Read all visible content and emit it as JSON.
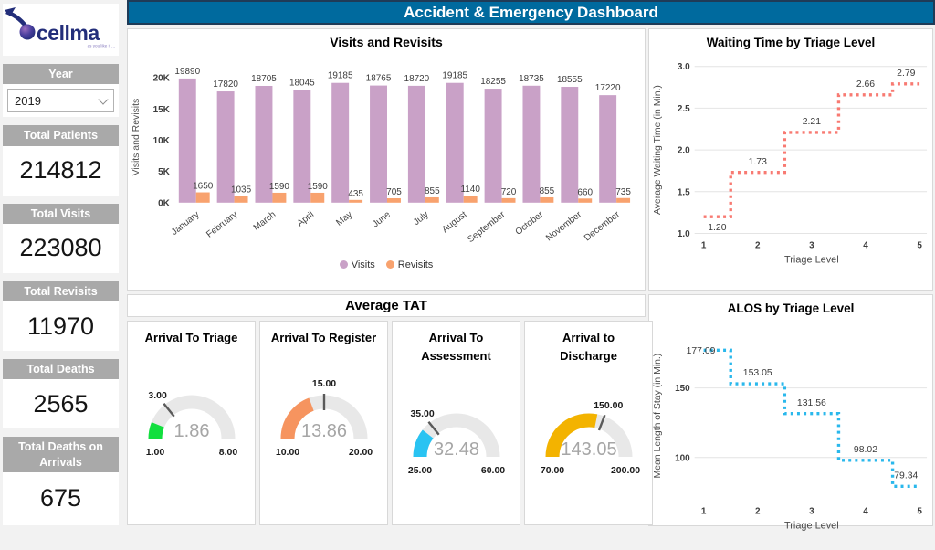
{
  "app": {
    "title": "Accident & Emergency Dashboard"
  },
  "logo": {
    "brand": "cellma",
    "tagline": "as you like it ..."
  },
  "sidebar": {
    "year_label": "Year",
    "year_value": "2019",
    "stats": [
      {
        "label": "Total Patients",
        "value": "214812"
      },
      {
        "label": "Total Visits",
        "value": "223080"
      },
      {
        "label": "Total Revisits",
        "value": "11970"
      },
      {
        "label": "Total Deaths",
        "value": "2565"
      },
      {
        "label": "Total Deaths on Arrivals",
        "value": "675"
      }
    ]
  },
  "theme": {
    "titlebar_bg": "#006a9e",
    "titlebar_border": "#1f3b57",
    "sidebar_header_gray": "#a9a9a9",
    "background": "#f2f2f2",
    "brand_navy": "#232e7a",
    "visits_color": "#c9a1c7",
    "revisits_color": "#f8a26e",
    "waiting_line_color": "#f87a72",
    "alos_line_color": "#2ab8ec"
  },
  "chart_data": [
    {
      "id": "visits_revisits",
      "type": "bar",
      "title": "Visits and Revisits",
      "categories": [
        "January",
        "February",
        "March",
        "April",
        "May",
        "June",
        "July",
        "August",
        "September",
        "October",
        "November",
        "December"
      ],
      "series": [
        {
          "name": "Visits",
          "color": "#c9a1c7",
          "values": [
            19890,
            17820,
            18705,
            18045,
            19185,
            18765,
            18720,
            19185,
            18255,
            18735,
            18555,
            17220
          ]
        },
        {
          "name": "Revisits",
          "color": "#f8a26e",
          "values": [
            1650,
            1035,
            1590,
            1590,
            435,
            705,
            855,
            1140,
            720,
            855,
            660,
            735
          ]
        }
      ],
      "xlabel": "",
      "ylabel": "Visits and Revisits",
      "yticks": [
        0,
        5000,
        10000,
        15000,
        20000
      ],
      "ytick_labels": [
        "0K",
        "5K",
        "10K",
        "15K",
        "20K"
      ],
      "ylim": [
        0,
        21000
      ],
      "grid": false,
      "legend_position": "bottom"
    },
    {
      "id": "waiting_time",
      "type": "line",
      "subtype": "step-dotted",
      "title": "Waiting Time by Triage Level",
      "x": [
        1,
        2,
        3,
        4,
        5
      ],
      "values": [
        1.2,
        1.73,
        2.21,
        2.66,
        2.79
      ],
      "labels": [
        "1.20",
        "1.73",
        "2.21",
        "2.66",
        "2.79"
      ],
      "color": "#f87a72",
      "xlabel": "Triage Level",
      "ylabel": "Average Waiting Time (in Min.)",
      "yticks": [
        1.0,
        1.5,
        2.0,
        2.5,
        3.0
      ],
      "ytick_labels": [
        "1.0",
        "1.5",
        "2.0",
        "2.5",
        "3.0"
      ],
      "ylim": [
        1.0,
        3.0
      ],
      "grid": true,
      "legend_position": "none"
    },
    {
      "id": "alos",
      "type": "line",
      "subtype": "step-dotted",
      "title": "ALOS by Triage Level",
      "x": [
        1,
        2,
        3,
        4,
        5
      ],
      "values": [
        177.09,
        153.05,
        131.56,
        98.02,
        79.34
      ],
      "labels": [
        "177.09",
        "153.05",
        "131.56",
        "98.02",
        "79.34"
      ],
      "color": "#2ab8ec",
      "xlabel": "Triage Level",
      "ylabel": "Mean Length of Stay (in Min.)",
      "yticks": [
        100,
        150
      ],
      "ytick_labels": [
        "100",
        "150"
      ],
      "ylim": [
        70,
        190
      ],
      "grid": true,
      "legend_position": "none"
    },
    {
      "id": "average_tat",
      "type": "gauge-group",
      "title": "Average TAT",
      "gauges": [
        {
          "title": "Arrival To Triage",
          "value": 1.86,
          "display_value": "1.86",
          "min": 1,
          "max": 8,
          "min_label": "1.00",
          "max_label": "8.00",
          "target": 3,
          "target_label": "3.00",
          "color": "#12df3e"
        },
        {
          "title": "Arrival To Register",
          "value": 13.86,
          "display_value": "13.86",
          "min": 10,
          "max": 20,
          "min_label": "10.00",
          "max_label": "20.00",
          "target": 15,
          "target_label": "15.00",
          "color": "#f6945f"
        },
        {
          "title": "Arrival To Assessment",
          "value": 32.48,
          "display_value": "32.48",
          "min": 25,
          "max": 60,
          "min_label": "25.00",
          "max_label": "60.00",
          "target": 35,
          "target_label": "35.00",
          "color": "#29c3f2"
        },
        {
          "title": "Arrival to Discharge",
          "value": 143.05,
          "display_value": "143.05",
          "min": 70,
          "max": 200,
          "min_label": "70.00",
          "max_label": "200.00",
          "target": 150,
          "target_label": "150.00",
          "color": "#f3b300"
        }
      ]
    }
  ]
}
